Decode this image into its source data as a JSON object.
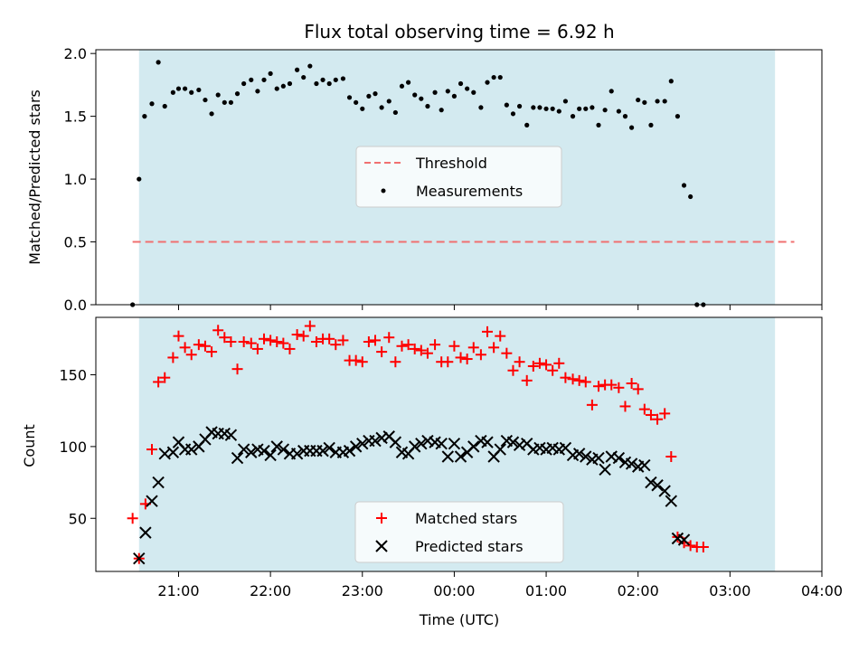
{
  "chart_data": {
    "type": "scatter",
    "title": "Flux total observing time = 6.92 h",
    "xlabel": "Time (UTC)",
    "x_unit": "hours since 00:00 UTC",
    "xlim": [
      -3.9,
      4.0
    ],
    "x_ticks": [
      {
        "value": -3,
        "label": "21:00"
      },
      {
        "value": -2,
        "label": "22:00"
      },
      {
        "value": -1,
        "label": "23:00"
      },
      {
        "value": 0,
        "label": "00:00"
      },
      {
        "value": 1,
        "label": "01:00"
      },
      {
        "value": 2,
        "label": "02:00"
      },
      {
        "value": 3,
        "label": "03:00"
      },
      {
        "value": 4,
        "label": "04:00"
      }
    ],
    "observing_window": {
      "start": -3.43,
      "end": 3.49,
      "color": "#d3eaf0"
    },
    "top": {
      "ylabel": "Matched/Predicted stars",
      "ylim": [
        0,
        2.03
      ],
      "y_ticks": [
        {
          "value": 0,
          "label": "0.0"
        },
        {
          "value": 0.5,
          "label": "0.5"
        },
        {
          "value": 1.0,
          "label": "1.0"
        },
        {
          "value": 1.5,
          "label": "1.5"
        },
        {
          "value": 2.0,
          "label": "2.0"
        }
      ],
      "threshold": {
        "name": "Threshold",
        "value": 0.5,
        "x_range": [
          -3.5,
          3.7
        ],
        "color": "#f07070"
      },
      "measurements_name": "Measurements",
      "legend_position": "center",
      "points": [
        [
          -3.5,
          0.0
        ],
        [
          -3.43,
          1.0
        ],
        [
          -3.37,
          1.5
        ],
        [
          -3.29,
          1.6
        ],
        [
          -3.22,
          1.93
        ],
        [
          -3.15,
          1.58
        ],
        [
          -3.06,
          1.69
        ],
        [
          -3.0,
          1.72
        ],
        [
          -2.93,
          1.72
        ],
        [
          -2.86,
          1.69
        ],
        [
          -2.78,
          1.71
        ],
        [
          -2.71,
          1.63
        ],
        [
          -2.64,
          1.52
        ],
        [
          -2.57,
          1.67
        ],
        [
          -2.5,
          1.61
        ],
        [
          -2.43,
          1.61
        ],
        [
          -2.36,
          1.68
        ],
        [
          -2.29,
          1.76
        ],
        [
          -2.21,
          1.79
        ],
        [
          -2.14,
          1.7
        ],
        [
          -2.07,
          1.79
        ],
        [
          -2.0,
          1.84
        ],
        [
          -1.93,
          1.72
        ],
        [
          -1.86,
          1.74
        ],
        [
          -1.79,
          1.76
        ],
        [
          -1.71,
          1.87
        ],
        [
          -1.64,
          1.81
        ],
        [
          -1.57,
          1.9
        ],
        [
          -1.5,
          1.76
        ],
        [
          -1.43,
          1.79
        ],
        [
          -1.36,
          1.76
        ],
        [
          -1.29,
          1.79
        ],
        [
          -1.21,
          1.8
        ],
        [
          -1.14,
          1.65
        ],
        [
          -1.07,
          1.61
        ],
        [
          -1.0,
          1.56
        ],
        [
          -0.93,
          1.66
        ],
        [
          -0.86,
          1.68
        ],
        [
          -0.79,
          1.57
        ],
        [
          -0.71,
          1.62
        ],
        [
          -0.64,
          1.53
        ],
        [
          -0.57,
          1.74
        ],
        [
          -0.5,
          1.77
        ],
        [
          -0.43,
          1.67
        ],
        [
          -0.36,
          1.64
        ],
        [
          -0.29,
          1.58
        ],
        [
          -0.21,
          1.69
        ],
        [
          -0.14,
          1.55
        ],
        [
          -0.07,
          1.7
        ],
        [
          0.0,
          1.66
        ],
        [
          0.07,
          1.76
        ],
        [
          0.14,
          1.72
        ],
        [
          0.21,
          1.69
        ],
        [
          0.29,
          1.57
        ],
        [
          0.36,
          1.77
        ],
        [
          0.43,
          1.81
        ],
        [
          0.5,
          1.81
        ],
        [
          0.57,
          1.59
        ],
        [
          0.64,
          1.52
        ],
        [
          0.71,
          1.58
        ],
        [
          0.79,
          1.43
        ],
        [
          0.86,
          1.57
        ],
        [
          0.93,
          1.57
        ],
        [
          1.0,
          1.56
        ],
        [
          1.07,
          1.56
        ],
        [
          1.14,
          1.54
        ],
        [
          1.21,
          1.62
        ],
        [
          1.29,
          1.5
        ],
        [
          1.36,
          1.56
        ],
        [
          1.43,
          1.56
        ],
        [
          1.5,
          1.57
        ],
        [
          1.57,
          1.43
        ],
        [
          1.64,
          1.55
        ],
        [
          1.71,
          1.7
        ],
        [
          1.79,
          1.54
        ],
        [
          1.86,
          1.5
        ],
        [
          1.93,
          1.41
        ],
        [
          2.0,
          1.63
        ],
        [
          2.07,
          1.61
        ],
        [
          2.14,
          1.43
        ],
        [
          2.21,
          1.62
        ],
        [
          2.29,
          1.62
        ],
        [
          2.36,
          1.78
        ],
        [
          2.43,
          1.5
        ],
        [
          2.5,
          0.95
        ],
        [
          2.57,
          0.86
        ],
        [
          2.64,
          0.0
        ],
        [
          2.71,
          0.0
        ]
      ]
    },
    "bottom": {
      "ylabel": "Count",
      "ylim": [
        13,
        190
      ],
      "y_ticks": [
        {
          "value": 50,
          "label": "50"
        },
        {
          "value": 100,
          "label": "100"
        },
        {
          "value": 150,
          "label": "150"
        }
      ],
      "legend_position": "lower center",
      "series": [
        {
          "name": "Matched stars",
          "marker": "+",
          "color": "#ff0000",
          "points": [
            [
              -3.5,
              50
            ],
            [
              -3.43,
              22
            ],
            [
              -3.36,
              60
            ],
            [
              -3.29,
              98
            ],
            [
              -3.22,
              145
            ],
            [
              -3.15,
              148
            ],
            [
              -3.06,
              162
            ],
            [
              -3.0,
              177
            ],
            [
              -2.93,
              169
            ],
            [
              -2.86,
              164
            ],
            [
              -2.78,
              171
            ],
            [
              -2.71,
              170
            ],
            [
              -2.64,
              166
            ],
            [
              -2.57,
              181
            ],
            [
              -2.5,
              176
            ],
            [
              -2.43,
              173
            ],
            [
              -2.36,
              154
            ],
            [
              -2.29,
              173
            ],
            [
              -2.21,
              172
            ],
            [
              -2.14,
              168
            ],
            [
              -2.07,
              175
            ],
            [
              -2.0,
              174
            ],
            [
              -1.93,
              173
            ],
            [
              -1.86,
              172
            ],
            [
              -1.79,
              168
            ],
            [
              -1.71,
              178
            ],
            [
              -1.64,
              177
            ],
            [
              -1.57,
              184
            ],
            [
              -1.5,
              173
            ],
            [
              -1.43,
              175
            ],
            [
              -1.36,
              175
            ],
            [
              -1.29,
              171
            ],
            [
              -1.21,
              174
            ],
            [
              -1.14,
              160
            ],
            [
              -1.07,
              160
            ],
            [
              -1.0,
              159
            ],
            [
              -0.93,
              173
            ],
            [
              -0.86,
              174
            ],
            [
              -0.79,
              166
            ],
            [
              -0.71,
              176
            ],
            [
              -0.64,
              159
            ],
            [
              -0.57,
              170
            ],
            [
              -0.5,
              171
            ],
            [
              -0.43,
              168
            ],
            [
              -0.36,
              167
            ],
            [
              -0.29,
              165
            ],
            [
              -0.21,
              171
            ],
            [
              -0.14,
              159
            ],
            [
              -0.07,
              159
            ],
            [
              0.0,
              170
            ],
            [
              0.07,
              162
            ],
            [
              0.14,
              161
            ],
            [
              0.21,
              169
            ],
            [
              0.29,
              164
            ],
            [
              0.36,
              180
            ],
            [
              0.43,
              169
            ],
            [
              0.5,
              177
            ],
            [
              0.57,
              165
            ],
            [
              0.64,
              153
            ],
            [
              0.71,
              159
            ],
            [
              0.79,
              146
            ],
            [
              0.86,
              156
            ],
            [
              0.93,
              158
            ],
            [
              1.0,
              157
            ],
            [
              1.07,
              153
            ],
            [
              1.14,
              158
            ],
            [
              1.21,
              148
            ],
            [
              1.29,
              147
            ],
            [
              1.36,
              146
            ],
            [
              1.43,
              145
            ],
            [
              1.5,
              129
            ],
            [
              1.57,
              142
            ],
            [
              1.64,
              143
            ],
            [
              1.71,
              143
            ],
            [
              1.79,
              141
            ],
            [
              1.86,
              128
            ],
            [
              1.93,
              144
            ],
            [
              2.0,
              140
            ],
            [
              2.07,
              126
            ],
            [
              2.14,
              122
            ],
            [
              2.21,
              119
            ],
            [
              2.29,
              123
            ],
            [
              2.36,
              93
            ],
            [
              2.43,
              37
            ],
            [
              2.5,
              33
            ],
            [
              2.57,
              31
            ],
            [
              2.64,
              30
            ],
            [
              2.71,
              30
            ]
          ]
        },
        {
          "name": "Predicted stars",
          "marker": "x",
          "color": "#000000",
          "points": [
            [
              -3.43,
              22
            ],
            [
              -3.36,
              40
            ],
            [
              -3.29,
              62
            ],
            [
              -3.22,
              75
            ],
            [
              -3.15,
              95
            ],
            [
              -3.06,
              96
            ],
            [
              -3.0,
              103
            ],
            [
              -2.93,
              98
            ],
            [
              -2.86,
              98
            ],
            [
              -2.78,
              100
            ],
            [
              -2.71,
              105
            ],
            [
              -2.64,
              110
            ],
            [
              -2.57,
              109
            ],
            [
              -2.5,
              109
            ],
            [
              -2.43,
              108
            ],
            [
              -2.36,
              92
            ],
            [
              -2.29,
              98
            ],
            [
              -2.21,
              96
            ],
            [
              -2.14,
              98
            ],
            [
              -2.07,
              97
            ],
            [
              -2.0,
              94
            ],
            [
              -1.93,
              100
            ],
            [
              -1.86,
              98
            ],
            [
              -1.79,
              95
            ],
            [
              -1.71,
              95
            ],
            [
              -1.64,
              97
            ],
            [
              -1.57,
              97
            ],
            [
              -1.5,
              97
            ],
            [
              -1.43,
              97
            ],
            [
              -1.36,
              99
            ],
            [
              -1.29,
              96
            ],
            [
              -1.21,
              96
            ],
            [
              -1.14,
              97
            ],
            [
              -1.07,
              100
            ],
            [
              -1.0,
              102
            ],
            [
              -0.93,
              104
            ],
            [
              -0.86,
              104
            ],
            [
              -0.79,
              106
            ],
            [
              -0.71,
              107
            ],
            [
              -0.64,
              103
            ],
            [
              -0.57,
              96
            ],
            [
              -0.5,
              95
            ],
            [
              -0.43,
              100
            ],
            [
              -0.36,
              102
            ],
            [
              -0.29,
              104
            ],
            [
              -0.21,
              103
            ],
            [
              -0.14,
              102
            ],
            [
              -0.07,
              93
            ],
            [
              0.0,
              102
            ],
            [
              0.07,
              93
            ],
            [
              0.14,
              96
            ],
            [
              0.21,
              100
            ],
            [
              0.29,
              104
            ],
            [
              0.36,
              103
            ],
            [
              0.43,
              93
            ],
            [
              0.5,
              98
            ],
            [
              0.57,
              104
            ],
            [
              0.64,
              103
            ],
            [
              0.71,
              101
            ],
            [
              0.79,
              102
            ],
            [
              0.86,
              98
            ],
            [
              0.93,
              99
            ],
            [
              1.0,
              98
            ],
            [
              1.07,
              99
            ],
            [
              1.14,
              98
            ],
            [
              1.21,
              99
            ],
            [
              1.29,
              94
            ],
            [
              1.36,
              95
            ],
            [
              1.43,
              93
            ],
            [
              1.5,
              91
            ],
            [
              1.57,
              92
            ],
            [
              1.64,
              84
            ],
            [
              1.71,
              93
            ],
            [
              1.79,
              92
            ],
            [
              1.86,
              89
            ],
            [
              1.93,
              88
            ],
            [
              2.0,
              86
            ],
            [
              2.07,
              87
            ],
            [
              2.14,
              75
            ],
            [
              2.21,
              73
            ],
            [
              2.29,
              69
            ],
            [
              2.36,
              62
            ],
            [
              2.43,
              36
            ],
            [
              2.5,
              35
            ]
          ]
        }
      ]
    }
  }
}
